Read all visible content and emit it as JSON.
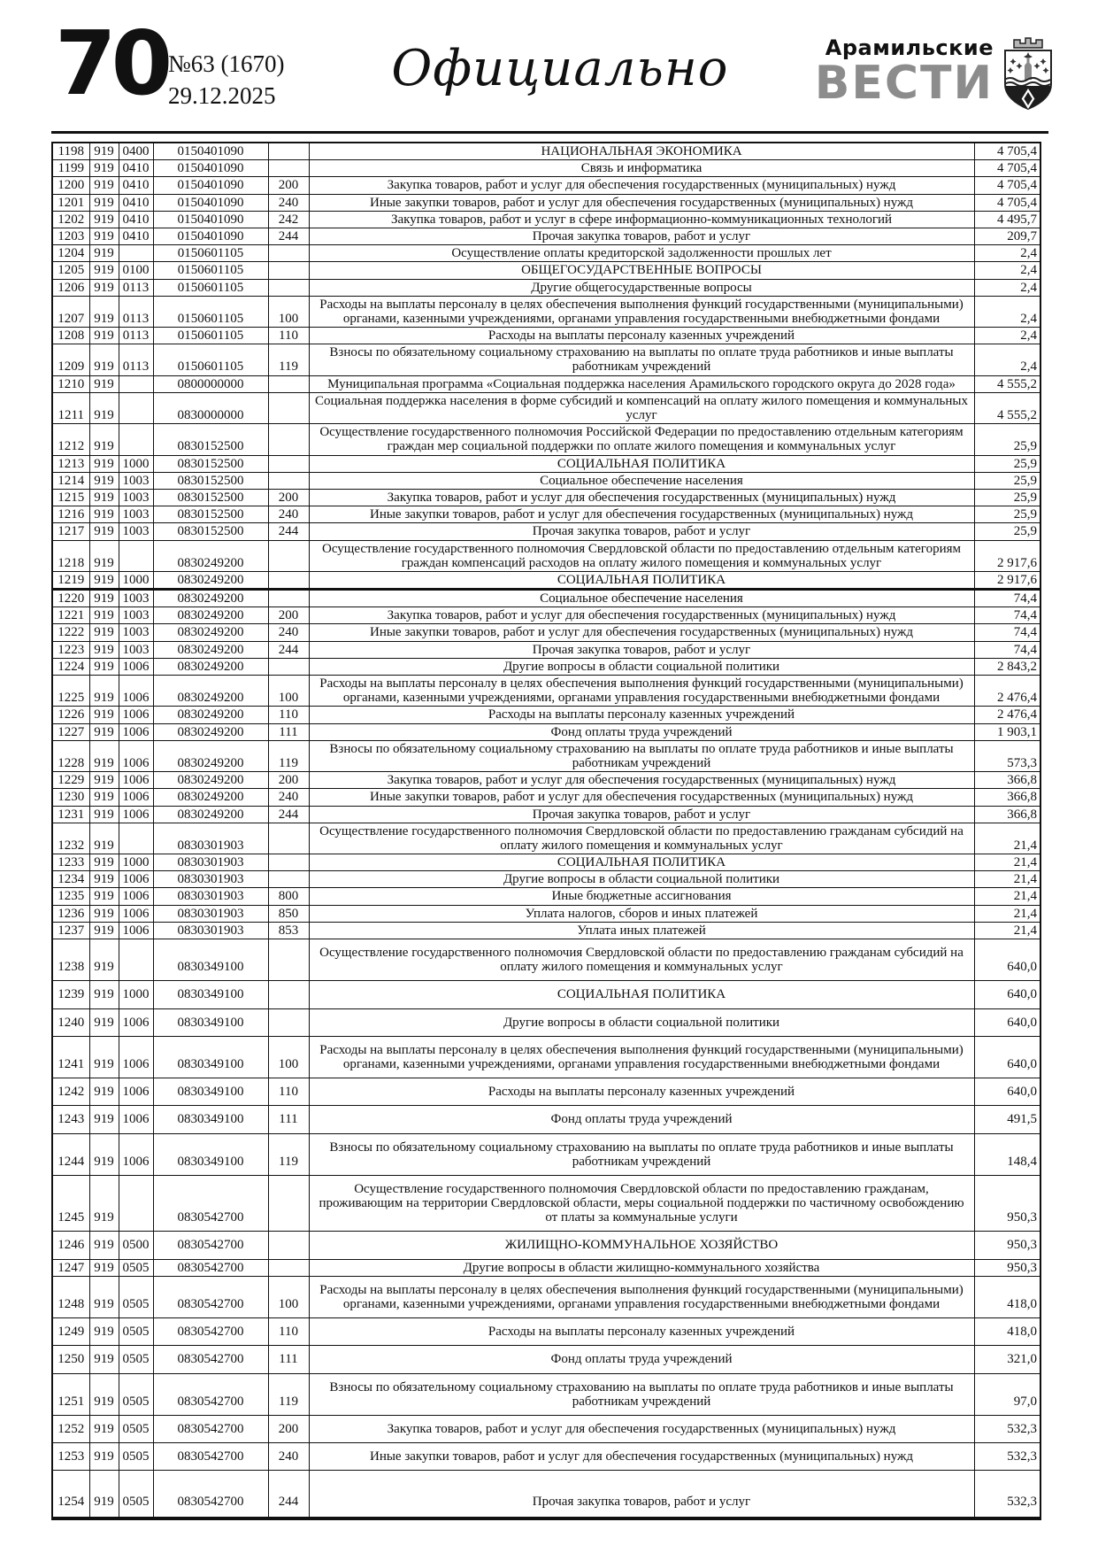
{
  "page": {
    "page_number": "70",
    "issue": "№63 (1670)",
    "date": "29.12.2025",
    "section_title": "Официально",
    "masthead": {
      "line1": "Арамильские",
      "line2": "ВЕСТИ"
    },
    "crest_icon": "aramil-coat-of-arms"
  },
  "colors": {
    "ink": "#111111",
    "masthead_gray": "#8c8c8c"
  },
  "table": {
    "rows": [
      {
        "n": "1198",
        "g": "919",
        "s": "0400",
        "t": "0150401090",
        "v": "",
        "name": "НАЦИОНАЛЬНАЯ ЭКОНОМИКА",
        "amt": "4 705,4"
      },
      {
        "n": "1199",
        "g": "919",
        "s": "0410",
        "t": "0150401090",
        "v": "",
        "name": "Связь и информатика",
        "amt": "4 705,4"
      },
      {
        "n": "1200",
        "g": "919",
        "s": "0410",
        "t": "0150401090",
        "v": "200",
        "name": "Закупка товаров, работ и услуг для обеспечения государственных (муниципальных) нужд",
        "amt": "4 705,4"
      },
      {
        "n": "1201",
        "g": "919",
        "s": "0410",
        "t": "0150401090",
        "v": "240",
        "name": "Иные закупки товаров, работ и услуг для обеспечения государственных (муниципальных) нужд",
        "amt": "4 705,4"
      },
      {
        "n": "1202",
        "g": "919",
        "s": "0410",
        "t": "0150401090",
        "v": "242",
        "name": "Закупка товаров, работ и услуг в сфере информационно-коммуникационных технологий",
        "amt": "4 495,7"
      },
      {
        "n": "1203",
        "g": "919",
        "s": "0410",
        "t": "0150401090",
        "v": "244",
        "name": "Прочая закупка товаров, работ и услуг",
        "amt": "209,7"
      },
      {
        "n": "1204",
        "g": "919",
        "s": "",
        "t": "0150601105",
        "v": "",
        "name": "Осуществление оплаты кредиторской задолженности прошлых лет",
        "amt": "2,4"
      },
      {
        "n": "1205",
        "g": "919",
        "s": "0100",
        "t": "0150601105",
        "v": "",
        "name": "ОБЩЕГОСУДАРСТВЕННЫЕ ВОПРОСЫ",
        "amt": "2,4"
      },
      {
        "n": "1206",
        "g": "919",
        "s": "0113",
        "t": "0150601105",
        "v": "",
        "name": "Другие общегосударственные вопросы",
        "amt": "2,4"
      },
      {
        "n": "1207",
        "g": "919",
        "s": "0113",
        "t": "0150601105",
        "v": "100",
        "name": "Расходы на выплаты персоналу в целях обеспечения выполнения функций государственными (муниципальными) органами, казенными учреждениями, органами управления государственными внебюджетными фондами",
        "amt": "2,4"
      },
      {
        "n": "1208",
        "g": "919",
        "s": "0113",
        "t": "0150601105",
        "v": "110",
        "name": "Расходы на выплаты персоналу казенных учреждений",
        "amt": "2,4"
      },
      {
        "n": "1209",
        "g": "919",
        "s": "0113",
        "t": "0150601105",
        "v": "119",
        "name": "Взносы по обязательному социальному страхованию на выплаты по оплате труда работников и иные выплаты работникам учреждений",
        "amt": "2,4"
      },
      {
        "n": "1210",
        "g": "919",
        "s": "",
        "t": "0800000000",
        "v": "",
        "name": "Муниципальная программа «Социальная поддержка населения Арамильского городского округа до 2028 года»",
        "amt": "4 555,2"
      },
      {
        "n": "1211",
        "g": "919",
        "s": "",
        "t": "0830000000",
        "v": "",
        "name": "Социальная поддержка населения в форме субсидий и компенсаций на оплату жилого помещения и коммунальных услуг",
        "amt": "4 555,2"
      },
      {
        "n": "1212",
        "g": "919",
        "s": "",
        "t": "0830152500",
        "v": "",
        "name": "Осуществление государственного полномочия Российской Федерации по предоставлению отдельным категориям граждан мер социальной поддержки по оплате жилого помещения и коммунальных услуг",
        "amt": "25,9"
      },
      {
        "n": "1213",
        "g": "919",
        "s": "1000",
        "t": "0830152500",
        "v": "",
        "name": "СОЦИАЛЬНАЯ ПОЛИТИКА",
        "amt": "25,9"
      },
      {
        "n": "1214",
        "g": "919",
        "s": "1003",
        "t": "0830152500",
        "v": "",
        "name": "Социальное обеспечение населения",
        "amt": "25,9"
      },
      {
        "n": "1215",
        "g": "919",
        "s": "1003",
        "t": "0830152500",
        "v": "200",
        "name": "Закупка товаров, работ и услуг для обеспечения государственных (муниципальных) нужд",
        "amt": "25,9"
      },
      {
        "n": "1216",
        "g": "919",
        "s": "1003",
        "t": "0830152500",
        "v": "240",
        "name": "Иные закупки товаров, работ и услуг для обеспечения государственных (муниципальных) нужд",
        "amt": "25,9"
      },
      {
        "n": "1217",
        "g": "919",
        "s": "1003",
        "t": "0830152500",
        "v": "244",
        "name": "Прочая закупка товаров, работ и услуг",
        "amt": "25,9"
      },
      {
        "n": "1218",
        "g": "919",
        "s": "",
        "t": "0830249200",
        "v": "",
        "name": "Осуществление государственного полномочия Свердловской области по предоставлению отдельным категориям граждан компенсаций расходов на оплату жилого помещения и коммунальных услуг",
        "amt": "2 917,6"
      },
      {
        "n": "1219",
        "g": "919",
        "s": "1000",
        "t": "0830249200",
        "v": "",
        "name": "СОЦИАЛЬНАЯ ПОЛИТИКА",
        "amt": "2 917,6"
      },
      {
        "n": "1220",
        "g": "919",
        "s": "1003",
        "t": "0830249200",
        "v": "",
        "name": "Социальное обеспечение населения",
        "amt": "74,4",
        "thick_top": true
      },
      {
        "n": "1221",
        "g": "919",
        "s": "1003",
        "t": "0830249200",
        "v": "200",
        "name": "Закупка товаров, работ и услуг для обеспечения государственных (муниципальных) нужд",
        "amt": "74,4"
      },
      {
        "n": "1222",
        "g": "919",
        "s": "1003",
        "t": "0830249200",
        "v": "240",
        "name": "Иные закупки товаров, работ и услуг для обеспечения государственных (муниципальных) нужд",
        "amt": "74,4"
      },
      {
        "n": "1223",
        "g": "919",
        "s": "1003",
        "t": "0830249200",
        "v": "244",
        "name": "Прочая закупка товаров, работ и услуг",
        "amt": "74,4"
      },
      {
        "n": "1224",
        "g": "919",
        "s": "1006",
        "t": "0830249200",
        "v": "",
        "name": "Другие вопросы в области социальной политики",
        "amt": "2 843,2"
      },
      {
        "n": "1225",
        "g": "919",
        "s": "1006",
        "t": "0830249200",
        "v": "100",
        "name": "Расходы на выплаты персоналу в целях обеспечения выполнения функций государственными (муниципальными) органами, казенными учреждениями, органами управления государственными внебюджетными фондами",
        "amt": "2 476,4"
      },
      {
        "n": "1226",
        "g": "919",
        "s": "1006",
        "t": "0830249200",
        "v": "110",
        "name": "Расходы на выплаты персоналу казенных учреждений",
        "amt": "2 476,4"
      },
      {
        "n": "1227",
        "g": "919",
        "s": "1006",
        "t": "0830249200",
        "v": "111",
        "name": "Фонд оплаты труда учреждений",
        "amt": "1 903,1"
      },
      {
        "n": "1228",
        "g": "919",
        "s": "1006",
        "t": "0830249200",
        "v": "119",
        "name": "Взносы по обязательному социальному страхованию на выплаты по оплате труда работников и иные выплаты работникам учреждений",
        "amt": "573,3"
      },
      {
        "n": "1229",
        "g": "919",
        "s": "1006",
        "t": "0830249200",
        "v": "200",
        "name": "Закупка товаров, работ и услуг для обеспечения государственных (муниципальных) нужд",
        "amt": "366,8"
      },
      {
        "n": "1230",
        "g": "919",
        "s": "1006",
        "t": "0830249200",
        "v": "240",
        "name": "Иные закупки товаров, работ и услуг для обеспечения государственных (муниципальных) нужд",
        "amt": "366,8"
      },
      {
        "n": "1231",
        "g": "919",
        "s": "1006",
        "t": "0830249200",
        "v": "244",
        "name": "Прочая закупка товаров, работ и услуг",
        "amt": "366,8"
      },
      {
        "n": "1232",
        "g": "919",
        "s": "",
        "t": "0830301903",
        "v": "",
        "name": "Осуществление государственного полномочия Свердловской области по предоставлению гражданам субсидий на оплату жилого помещения и коммунальных услуг",
        "amt": "21,4"
      },
      {
        "n": "1233",
        "g": "919",
        "s": "1000",
        "t": "0830301903",
        "v": "",
        "name": "СОЦИАЛЬНАЯ ПОЛИТИКА",
        "amt": "21,4"
      },
      {
        "n": "1234",
        "g": "919",
        "s": "1006",
        "t": "0830301903",
        "v": "",
        "name": "Другие вопросы в области социальной политики",
        "amt": "21,4"
      },
      {
        "n": "1235",
        "g": "919",
        "s": "1006",
        "t": "0830301903",
        "v": "800",
        "name": "Иные бюджетные ассигнования",
        "amt": "21,4"
      },
      {
        "n": "1236",
        "g": "919",
        "s": "1006",
        "t": "0830301903",
        "v": "850",
        "name": "Уплата налогов, сборов и иных платежей",
        "amt": "21,4"
      },
      {
        "n": "1237",
        "g": "919",
        "s": "1006",
        "t": "0830301903",
        "v": "853",
        "name": "Уплата иных платежей",
        "amt": "21,4"
      },
      {
        "n": "1238",
        "g": "919",
        "s": "",
        "t": "0830349100",
        "v": "",
        "name": "Осуществление государственного полномочия Свердловской области по предоставлению гражданам субсидий на оплату жилого помещения и коммунальных услуг",
        "amt": "640,0",
        "size": "l"
      },
      {
        "n": "1239",
        "g": "919",
        "s": "1000",
        "t": "0830349100",
        "v": "",
        "name": "СОЦИАЛЬНАЯ ПОЛИТИКА",
        "amt": "640,0",
        "size": "l"
      },
      {
        "n": "1240",
        "g": "919",
        "s": "1006",
        "t": "0830349100",
        "v": "",
        "name": "Другие вопросы в области социальной политики",
        "amt": "640,0",
        "size": "l"
      },
      {
        "n": "1241",
        "g": "919",
        "s": "1006",
        "t": "0830349100",
        "v": "100",
        "name": "Расходы на выплаты персоналу в целях обеспечения выполнения функций государственными (муниципальными) органами, казенными учреждениями, органами управления государственными внебюджетными фондами",
        "amt": "640,0",
        "size": "l"
      },
      {
        "n": "1242",
        "g": "919",
        "s": "1006",
        "t": "0830349100",
        "v": "110",
        "name": "Расходы на выплаты персоналу казенных учреждений",
        "amt": "640,0",
        "size": "l"
      },
      {
        "n": "1243",
        "g": "919",
        "s": "1006",
        "t": "0830349100",
        "v": "111",
        "name": "Фонд оплаты труда учреждений",
        "amt": "491,5",
        "size": "l"
      },
      {
        "n": "1244",
        "g": "919",
        "s": "1006",
        "t": "0830349100",
        "v": "119",
        "name": "Взносы по обязательному социальному страхованию на выплаты по оплате труда работников и иные выплаты работникам учреждений",
        "amt": "148,4",
        "size": "l"
      },
      {
        "n": "1245",
        "g": "919",
        "s": "",
        "t": "0830542700",
        "v": "",
        "name": "Осуществление государственного полномочия Свердловской области по предоставлению гражданам, проживающим на территории Свердловской области, меры социальной поддержки по частичному освобождению от платы за коммунальные услуги",
        "amt": "950,3",
        "size": "l"
      },
      {
        "n": "1246",
        "g": "919",
        "s": "0500",
        "t": "0830542700",
        "v": "",
        "name": "ЖИЛИЩНО-КОММУНАЛЬНОЕ ХОЗЯЙСТВО",
        "amt": "950,3",
        "size": "l"
      },
      {
        "n": "1247",
        "g": "919",
        "s": "0505",
        "t": "0830542700",
        "v": "",
        "name": "Другие вопросы в области жилищно-коммунального хозяйства",
        "amt": "950,3"
      },
      {
        "n": "1248",
        "g": "919",
        "s": "0505",
        "t": "0830542700",
        "v": "100",
        "name": "Расходы на выплаты персоналу в целях обеспечения выполнения функций государственными (муниципальными) органами, казенными учреждениями, органами управления государственными внебюджетными фондами",
        "amt": "418,0",
        "size": "l"
      },
      {
        "n": "1249",
        "g": "919",
        "s": "0505",
        "t": "0830542700",
        "v": "110",
        "name": "Расходы на выплаты персоналу казенных учреждений",
        "amt": "418,0",
        "size": "l"
      },
      {
        "n": "1250",
        "g": "919",
        "s": "0505",
        "t": "0830542700",
        "v": "111",
        "name": "Фонд оплаты труда учреждений",
        "amt": "321,0",
        "size": "l"
      },
      {
        "n": "1251",
        "g": "919",
        "s": "0505",
        "t": "0830542700",
        "v": "119",
        "name": "Взносы по обязательному социальному страхованию на выплаты по оплате труда работников и иные выплаты работникам учреждений",
        "amt": "97,0",
        "size": "l"
      },
      {
        "n": "1252",
        "g": "919",
        "s": "0505",
        "t": "0830542700",
        "v": "200",
        "name": "Закупка товаров, работ и услуг для обеспечения государственных (муниципальных) нужд",
        "amt": "532,3",
        "size": "l"
      },
      {
        "n": "1253",
        "g": "919",
        "s": "0505",
        "t": "0830542700",
        "v": "240",
        "name": "Иные закупки товаров, работ и услуг для обеспечения государственных (муниципальных) нужд",
        "amt": "532,3",
        "size": "l"
      },
      {
        "n": "1254",
        "g": "919",
        "s": "0505",
        "t": "0830542700",
        "v": "244",
        "name": "Прочая закупка товаров, работ и услуг",
        "amt": "532,3",
        "size": "xl"
      }
    ]
  }
}
